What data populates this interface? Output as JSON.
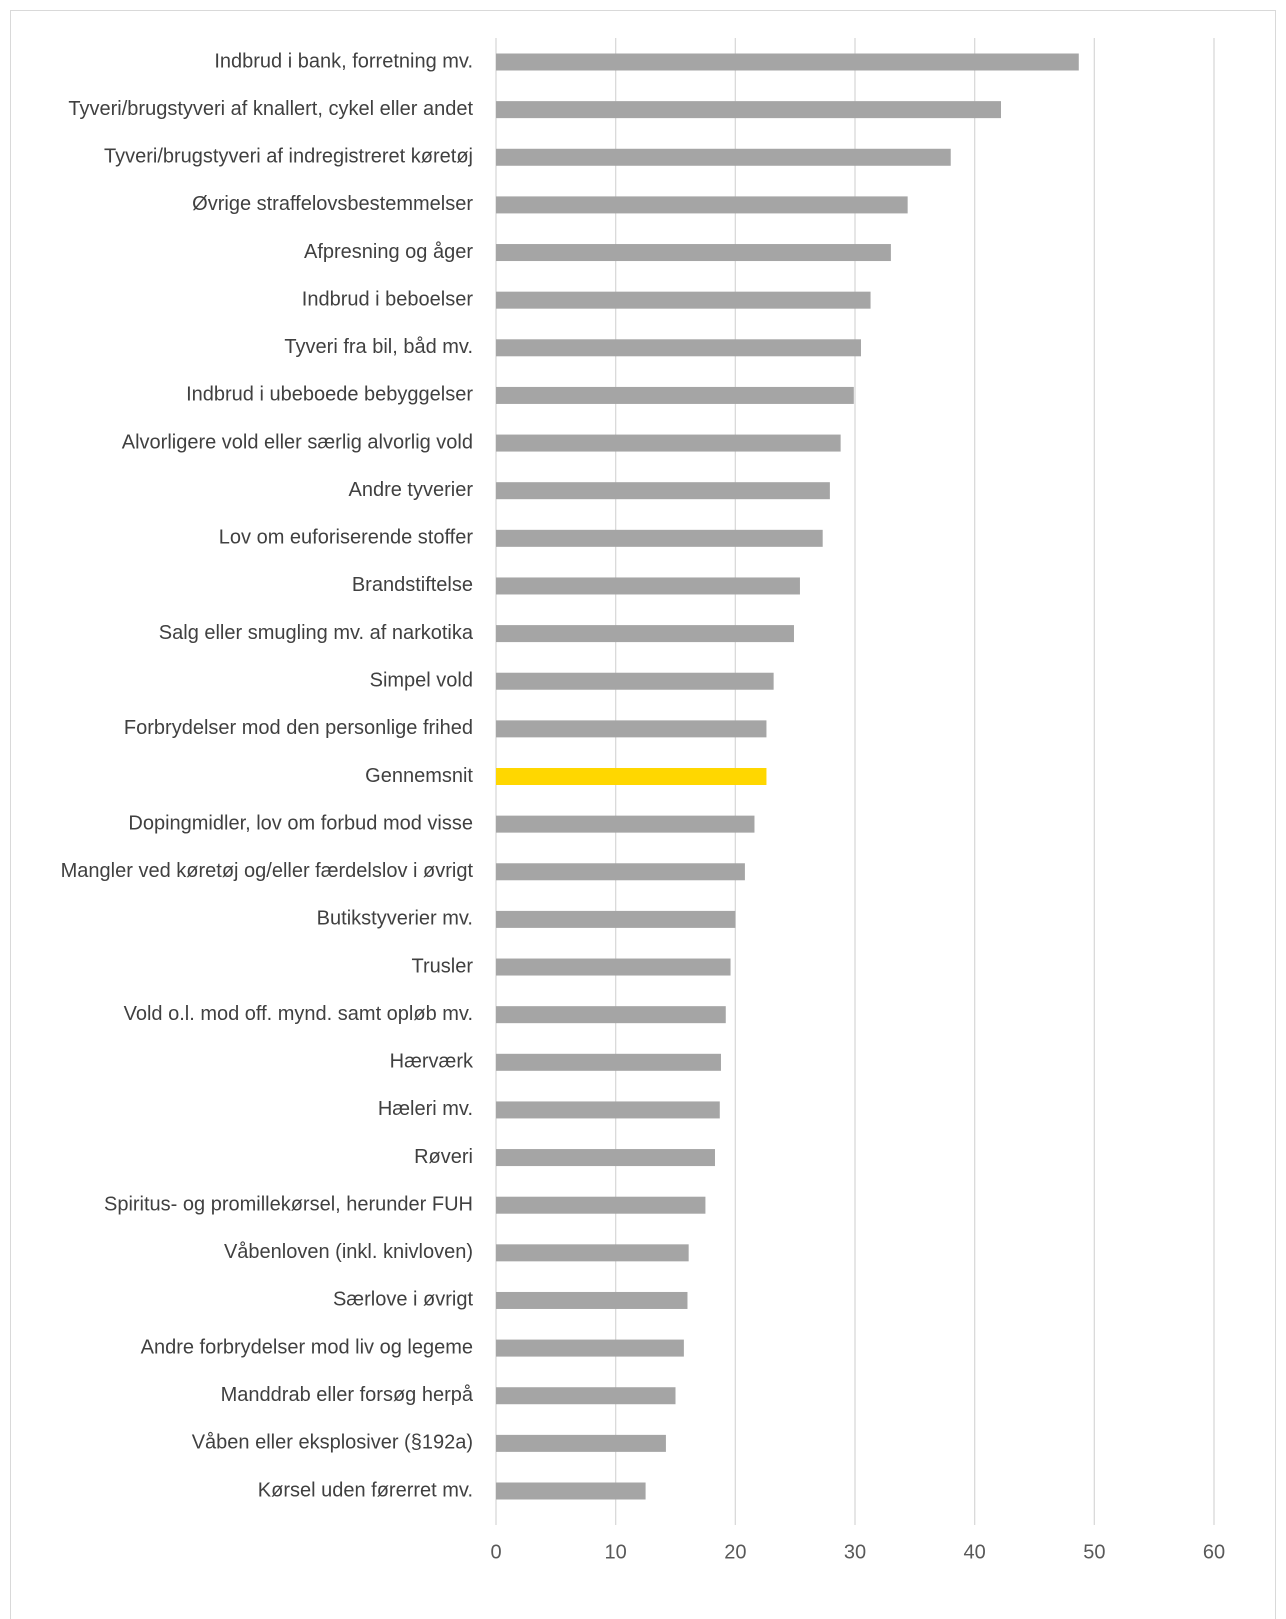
{
  "chart_data": {
    "type": "bar",
    "orientation": "horizontal",
    "title": "",
    "xlabel": "",
    "ylabel": "",
    "xlim": [
      0,
      60
    ],
    "xticks": [
      0,
      10,
      20,
      30,
      40,
      50,
      60
    ],
    "grid": "vertical",
    "legend": "none",
    "colors": {
      "bar": "#a5a5a5",
      "highlight": "#ffd700"
    },
    "highlight_category": "Gennemsnit",
    "categories": [
      "Indbrud i bank, forretning mv.",
      "Tyveri/brugstyveri af knallert, cykel eller andet",
      "Tyveri/brugstyveri af indregistreret køretøj",
      "Øvrige straffelovsbestemmelser",
      "Afpresning og åger",
      "Indbrud i beboelser",
      "Tyveri fra bil, båd mv.",
      "Indbrud i ubeboede bebyggelser",
      "Alvorligere vold eller særlig alvorlig vold",
      "Andre tyverier",
      "Lov om euforiserende stoffer",
      "Brandstiftelse",
      "Salg eller smugling mv. af narkotika",
      "Simpel vold",
      "Forbrydelser mod den personlige frihed",
      "Gennemsnit",
      "Dopingmidler, lov om forbud mod visse",
      "Mangler ved køretøj og/eller færdelslov i øvrigt",
      "Butikstyverier mv.",
      "Trusler",
      "Vold o.l. mod off. mynd. samt opløb mv.",
      "Hærværk",
      "Hæleri mv.",
      "Røveri",
      "Spiritus- og promillekørsel, herunder FUH",
      "Våbenloven (inkl. knivloven)",
      "Særlove i øvrigt",
      "Andre forbrydelser mod liv og legeme",
      "Manddrab eller forsøg herpå",
      "Våben eller eksplosiver (§192a)",
      "Kørsel uden førerret mv."
    ],
    "values": [
      48.7,
      42.2,
      38.0,
      34.4,
      33.0,
      31.3,
      30.5,
      29.9,
      28.8,
      27.9,
      27.3,
      25.4,
      24.9,
      23.2,
      22.6,
      22.6,
      21.6,
      20.8,
      20.0,
      19.6,
      19.2,
      18.8,
      18.7,
      18.3,
      17.5,
      16.1,
      16.0,
      15.7,
      15.0,
      14.2,
      12.5
    ]
  }
}
